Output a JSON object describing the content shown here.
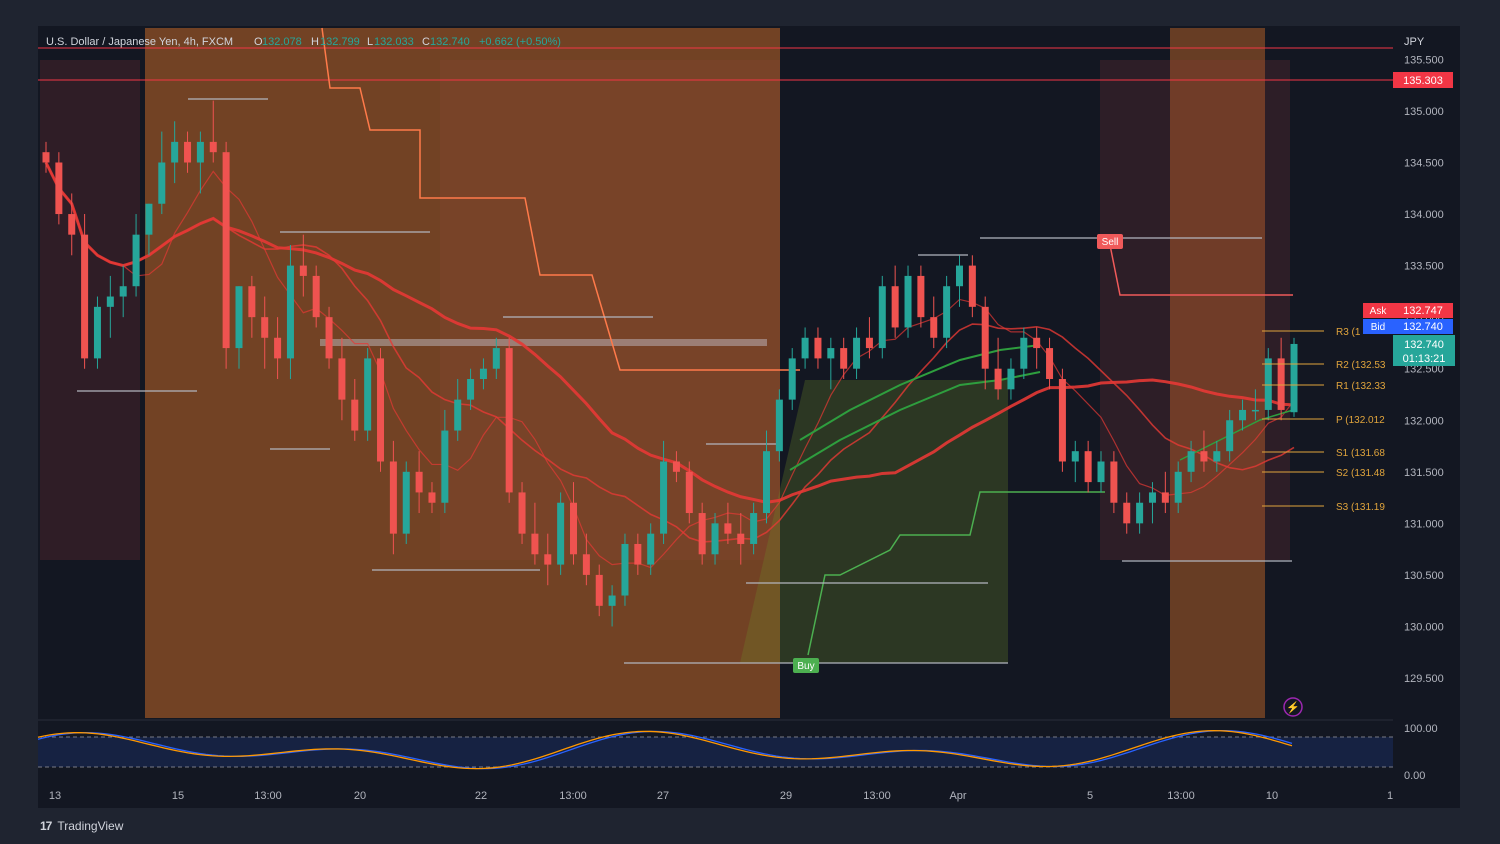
{
  "header": {
    "symbol": "U.S. Dollar / Japanese Yen, 4h, FXCM",
    "o_label": "O",
    "o": "132.078",
    "h_label": "H",
    "h": "132.799",
    "l_label": "L",
    "l": "132.033",
    "c_label": "C",
    "c": "132.740",
    "change": "+0.662 (+0.50%)"
  },
  "axis": {
    "currency": "JPY",
    "price_labels": [
      "135.500",
      "135.000",
      "134.500",
      "134.000",
      "133.500",
      "133.000",
      "132.500",
      "132.000",
      "131.500",
      "131.000",
      "130.500",
      "130.000",
      "129.500"
    ],
    "alert_price": "135.303",
    "ask_label": "Ask",
    "ask": "132.747",
    "bid_label": "Bid",
    "bid": "132.740",
    "last_price": "132.740",
    "countdown": "01:13:21",
    "time_labels": [
      "13",
      "15",
      "13:00",
      "20",
      "22",
      "13:00",
      "27",
      "29",
      "13:00",
      "Apr",
      "5",
      "13:00",
      "10",
      "1"
    ],
    "osc_labels": [
      "100.00",
      "0.00"
    ]
  },
  "pivots": {
    "r3": "R3 (1",
    "r2": "R2 (132.53",
    "r1": "R1 (132.33",
    "p": "P (132.012",
    "s1": "S1 (131.68",
    "s2": "S2 (131.48",
    "s3": "S3 (131.19"
  },
  "signals": {
    "sell": "Sell",
    "buy": "Buy"
  },
  "brand": {
    "name": "TradingView",
    "logo": "17"
  },
  "colors": {
    "bg": "#131722",
    "up": "#26a69a",
    "down": "#ef5350",
    "ema": "#e53935",
    "ma_green": "#2e9e3e",
    "pivot": "#e0a43c",
    "ask": "#f23645",
    "bid": "#2962ff",
    "osc_fast": "#2962ff",
    "osc_slow": "#ff9800"
  },
  "chart_data": {
    "type": "candlestick",
    "y_range": [
      129.2,
      135.75
    ],
    "pivot_levels": {
      "R2": 132.53,
      "R1": 132.33,
      "P": 132.012,
      "S1": 131.68,
      "S2": 131.48,
      "S3": 131.19
    },
    "candles": [
      [
        134.6,
        134.7,
        134.4,
        134.5
      ],
      [
        134.5,
        134.6,
        133.9,
        134.0
      ],
      [
        134.0,
        134.2,
        133.6,
        133.8
      ],
      [
        133.8,
        134.0,
        132.5,
        132.6
      ],
      [
        132.6,
        133.2,
        132.5,
        133.1
      ],
      [
        133.1,
        133.4,
        132.8,
        133.2
      ],
      [
        133.2,
        133.5,
        133.0,
        133.3
      ],
      [
        133.3,
        134.0,
        133.2,
        133.8
      ],
      [
        133.8,
        134.1,
        133.6,
        134.1
      ],
      [
        134.1,
        134.8,
        134.0,
        134.5
      ],
      [
        134.5,
        134.9,
        134.3,
        134.7
      ],
      [
        134.7,
        134.8,
        134.4,
        134.5
      ],
      [
        134.5,
        134.8,
        134.2,
        134.7
      ],
      [
        134.7,
        135.1,
        134.5,
        134.6
      ],
      [
        134.6,
        134.7,
        132.5,
        132.7
      ],
      [
        132.7,
        133.3,
        132.5,
        133.3
      ],
      [
        133.3,
        133.4,
        132.8,
        133.0
      ],
      [
        133.0,
        133.2,
        132.5,
        132.8
      ],
      [
        132.8,
        133.0,
        132.4,
        132.6
      ],
      [
        132.6,
        133.7,
        132.4,
        133.5
      ],
      [
        133.5,
        133.8,
        133.2,
        133.4
      ],
      [
        133.4,
        133.5,
        132.9,
        133.0
      ],
      [
        133.0,
        133.1,
        132.5,
        132.6
      ],
      [
        132.6,
        132.8,
        132.0,
        132.2
      ],
      [
        132.2,
        132.4,
        131.8,
        131.9
      ],
      [
        131.9,
        132.7,
        131.8,
        132.6
      ],
      [
        132.6,
        132.7,
        131.5,
        131.6
      ],
      [
        131.6,
        131.8,
        130.7,
        130.9
      ],
      [
        130.9,
        131.6,
        130.8,
        131.5
      ],
      [
        131.5,
        131.7,
        131.1,
        131.3
      ],
      [
        131.3,
        131.4,
        131.1,
        131.2
      ],
      [
        131.2,
        132.1,
        131.1,
        131.9
      ],
      [
        131.9,
        132.4,
        131.8,
        132.2
      ],
      [
        132.2,
        132.5,
        132.1,
        132.4
      ],
      [
        132.4,
        132.6,
        132.3,
        132.5
      ],
      [
        132.5,
        132.8,
        132.4,
        132.7
      ],
      [
        132.7,
        132.8,
        131.2,
        131.3
      ],
      [
        131.3,
        131.4,
        130.8,
        130.9
      ],
      [
        130.9,
        131.2,
        130.6,
        130.7
      ],
      [
        130.7,
        130.9,
        130.4,
        130.6
      ],
      [
        130.6,
        131.3,
        130.5,
        131.2
      ],
      [
        131.2,
        131.4,
        130.6,
        130.7
      ],
      [
        130.7,
        130.9,
        130.4,
        130.5
      ],
      [
        130.5,
        130.6,
        130.1,
        130.2
      ],
      [
        130.2,
        130.4,
        130.0,
        130.3
      ],
      [
        130.3,
        130.9,
        130.2,
        130.8
      ],
      [
        130.8,
        130.9,
        130.5,
        130.6
      ],
      [
        130.6,
        131.0,
        130.5,
        130.9
      ],
      [
        130.9,
        131.8,
        130.8,
        131.6
      ],
      [
        131.6,
        131.7,
        131.4,
        131.5
      ],
      [
        131.5,
        131.6,
        131.0,
        131.1
      ],
      [
        131.1,
        131.2,
        130.6,
        130.7
      ],
      [
        130.7,
        131.1,
        130.6,
        131.0
      ],
      [
        131.0,
        131.2,
        130.8,
        130.9
      ],
      [
        130.9,
        131.1,
        130.6,
        130.8
      ],
      [
        130.8,
        131.2,
        130.7,
        131.1
      ],
      [
        131.1,
        131.9,
        131.0,
        131.7
      ],
      [
        131.7,
        132.3,
        131.6,
        132.2
      ],
      [
        132.2,
        132.7,
        132.1,
        132.6
      ],
      [
        132.6,
        132.9,
        132.5,
        132.8
      ],
      [
        132.8,
        132.9,
        132.5,
        132.6
      ],
      [
        132.6,
        132.8,
        132.3,
        132.7
      ],
      [
        132.7,
        132.8,
        132.4,
        132.5
      ],
      [
        132.5,
        132.9,
        132.4,
        132.8
      ],
      [
        132.8,
        133.0,
        132.6,
        132.7
      ],
      [
        132.7,
        133.4,
        132.6,
        133.3
      ],
      [
        133.3,
        133.5,
        132.8,
        132.9
      ],
      [
        132.9,
        133.5,
        132.8,
        133.4
      ],
      [
        133.4,
        133.5,
        132.9,
        133.0
      ],
      [
        133.0,
        133.2,
        132.7,
        132.8
      ],
      [
        132.8,
        133.4,
        132.7,
        133.3
      ],
      [
        133.3,
        133.6,
        133.1,
        133.5
      ],
      [
        133.5,
        133.6,
        133.0,
        133.1
      ],
      [
        133.1,
        133.2,
        132.3,
        132.5
      ],
      [
        132.5,
        132.8,
        132.2,
        132.3
      ],
      [
        132.3,
        132.6,
        132.2,
        132.5
      ],
      [
        132.5,
        132.9,
        132.4,
        132.8
      ],
      [
        132.8,
        132.9,
        132.5,
        132.7
      ],
      [
        132.7,
        132.8,
        132.3,
        132.4
      ],
      [
        132.4,
        132.5,
        131.5,
        131.6
      ],
      [
        131.6,
        131.8,
        131.4,
        131.7
      ],
      [
        131.7,
        131.8,
        131.3,
        131.4
      ],
      [
        131.4,
        131.7,
        131.3,
        131.6
      ],
      [
        131.6,
        131.7,
        131.1,
        131.2
      ],
      [
        131.2,
        131.3,
        130.9,
        131.0
      ],
      [
        131.0,
        131.3,
        130.9,
        131.2
      ],
      [
        131.2,
        131.4,
        131.0,
        131.3
      ],
      [
        131.3,
        131.5,
        131.1,
        131.2
      ],
      [
        131.2,
        131.6,
        131.1,
        131.5
      ],
      [
        131.5,
        131.8,
        131.4,
        131.7
      ],
      [
        131.7,
        131.9,
        131.5,
        131.6
      ],
      [
        131.6,
        131.8,
        131.5,
        131.7
      ],
      [
        131.7,
        132.1,
        131.6,
        132.0
      ],
      [
        132.0,
        132.2,
        131.9,
        132.1
      ],
      [
        132.1,
        132.3,
        132.0,
        132.1
      ],
      [
        132.1,
        132.7,
        132.0,
        132.6
      ],
      [
        132.6,
        132.8,
        132.0,
        132.1
      ],
      [
        132.078,
        132.799,
        132.033,
        132.74
      ]
    ],
    "oscillator": {
      "range": [
        0,
        100
      ],
      "levels": [
        80,
        20
      ]
    }
  }
}
